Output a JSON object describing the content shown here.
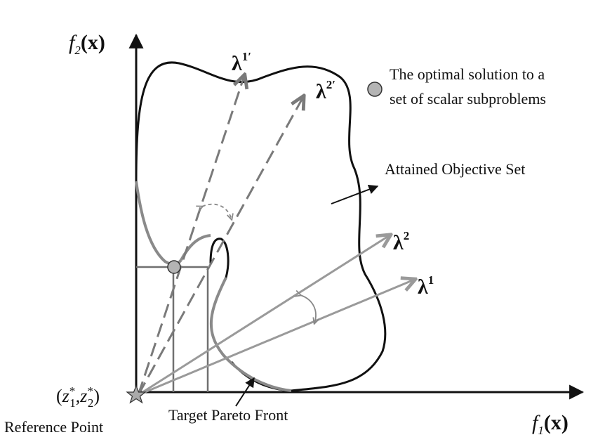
{
  "axes": {
    "y_label": {
      "fn": "f",
      "sub": "2",
      "arg": "(x)"
    },
    "x_label": {
      "fn": "f",
      "sub": "1",
      "arg": "(x)"
    }
  },
  "reference_point": {
    "coord_open": "(",
    "z": "z",
    "sub1": "1",
    "sub2": "2",
    "star": "*",
    "comma": ",",
    "coord_close": ")",
    "label": "Reference Point"
  },
  "labels": {
    "legend_line1": "The optimal solution to a",
    "legend_line2": "set of scalar subproblems",
    "attained_set": "Attained Objective Set",
    "target_front": "Target Pareto Front"
  },
  "vectors": {
    "lambda_symbol": "λ",
    "lambda1_prime_sup": "1′",
    "lambda2_prime_sup": "2′",
    "lambda2_sup": "2",
    "lambda1_sup": "1"
  },
  "colors": {
    "boundary": "#111111",
    "front": "#8a8a8a",
    "vector_gray": "#9a9a9a",
    "dashed": "#7a7a7a",
    "marker_fill": "#b4b4b4"
  },
  "icons": {
    "reference": "star-icon",
    "legend_marker": "circle-icon"
  }
}
